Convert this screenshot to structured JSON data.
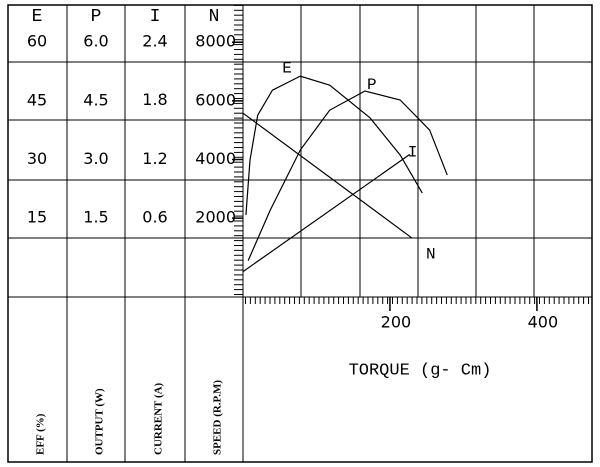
{
  "chart_data": {
    "type": "line",
    "x_label": "TORQUE (g- Cm)",
    "xlim": [
      0,
      475
    ],
    "xticks": [
      200,
      400
    ],
    "axes": [
      {
        "name": "E",
        "unit_label": "EFF (%)",
        "ylim": [
          -5.2,
          69.5
        ],
        "yticks": [
          60,
          45,
          30,
          15
        ]
      },
      {
        "name": "P",
        "unit_label": "OUTPUT (W)",
        "ylim": [
          -0.52,
          6.95
        ],
        "yticks": [
          {
            "value": 6,
            "label": "6.0"
          },
          4.5,
          {
            "value": 3,
            "label": "3.0"
          },
          1.5
        ]
      },
      {
        "name": "I",
        "unit_label": "CURRENT (A)",
        "ylim": [
          -0.21,
          2.78
        ],
        "yticks": [
          2.4,
          1.8,
          1.2,
          0.6
        ]
      },
      {
        "name": "N",
        "unit_label": "SPEED (R.P.M)",
        "ylim": [
          -690,
          9270
        ],
        "yticks": [
          8000,
          6000,
          4000,
          2000
        ]
      }
    ],
    "series": [
      {
        "name": "E",
        "axis": "E",
        "color": "#000000",
        "x": [
          4,
          9.5,
          20,
          40,
          78,
          118,
          173,
          214,
          244
        ],
        "values": [
          15.8,
          29.8,
          41.3,
          47.7,
          51.3,
          49,
          40.6,
          31.1,
          21.4
        ]
      },
      {
        "name": "P",
        "axis": "P",
        "color": "#000000",
        "x": [
          7,
          37,
          78,
          118,
          166,
          214,
          254,
          278
        ],
        "values": [
          0.41,
          1.7,
          3.24,
          4.26,
          4.75,
          4.52,
          3.75,
          2.6
        ]
      },
      {
        "name": "I",
        "axis": "I",
        "color": "#000000",
        "x": [
          0,
          227
        ],
        "values": [
          0.05,
          1.25
        ]
      },
      {
        "name": "N",
        "axis": "N",
        "color": "#000000",
        "x": [
          0,
          230
        ],
        "values": [
          5580,
          1320
        ]
      }
    ]
  }
}
